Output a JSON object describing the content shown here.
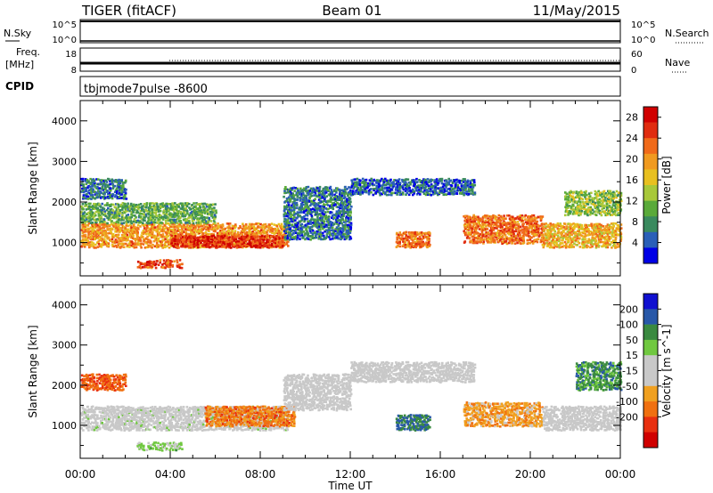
{
  "header": {
    "station": "TIGER (fitACF)",
    "beam": "Beam 01",
    "date": "11/May/2015"
  },
  "top_panels": {
    "nsky_label": "N.Sky",
    "nsearch_label": "N.Search",
    "nsky_ticks": [
      "10^5",
      "10^0"
    ],
    "nsearch_ticks": [
      "10^5",
      "10^0"
    ],
    "freq_label": "Freq.",
    "freq_unit": "[MHz]",
    "freq_ticks": [
      "18",
      "8"
    ],
    "nave_label": "Nave",
    "nave_ticks": [
      "60",
      "0"
    ],
    "cpid_label": "CPID",
    "cpid_value": "tbjmode7pulse -8600"
  },
  "colors": {
    "power_scale": [
      "#0000e6",
      "#2a5fb8",
      "#3a8a5e",
      "#5aaa3a",
      "#a8c83a",
      "#e8c020",
      "#f09a20",
      "#f06a1a",
      "#e02c10",
      "#d00000"
    ],
    "velocity_scale": [
      "#1010d0",
      "#2858a8",
      "#3a8a40",
      "#70c840",
      "#c8c8c8",
      "#c8c8c8",
      "#f0a020",
      "#f07010",
      "#e83010",
      "#d00000"
    ],
    "accent_text": "#000000"
  },
  "chart_data": [
    {
      "type": "heatmap",
      "title": "",
      "ylabel": "Slant Range [km]",
      "xlabel": "",
      "x_ticks": [
        "00:00",
        "04:00",
        "08:00",
        "12:00",
        "16:00",
        "20:00",
        "00:00"
      ],
      "y_ticks": [
        "1000",
        "2000",
        "3000",
        "4000"
      ],
      "ylim": [
        180,
        4500
      ],
      "colorbar": {
        "label": "Power [dB]",
        "ticks": [
          "4",
          "8",
          "12",
          "16",
          "20",
          "24",
          "28"
        ],
        "range": [
          0,
          30
        ]
      },
      "echo_regions": [
        {
          "t": [
            0.0,
            9.2
          ],
          "range": [
            900,
            1500
          ],
          "level": 20
        },
        {
          "t": [
            0.0,
            6.0
          ],
          "range": [
            1500,
            2000
          ],
          "level": 10
        },
        {
          "t": [
            0.0,
            2.0
          ],
          "range": [
            2100,
            2600
          ],
          "level": 6
        },
        {
          "t": [
            2.5,
            4.5
          ],
          "range": [
            400,
            600
          ],
          "level": 24
        },
        {
          "t": [
            4.0,
            9.0
          ],
          "range": [
            900,
            1200
          ],
          "level": 26
        },
        {
          "t": [
            9.0,
            12.0
          ],
          "range": [
            1100,
            2400
          ],
          "level": 6
        },
        {
          "t": [
            12.0,
            17.5
          ],
          "range": [
            2200,
            2600
          ],
          "level": 5
        },
        {
          "t": [
            14.0,
            15.5
          ],
          "range": [
            900,
            1300
          ],
          "level": 22
        },
        {
          "t": [
            17.0,
            20.5
          ],
          "range": [
            1000,
            1700
          ],
          "level": 22
        },
        {
          "t": [
            20.5,
            24.0
          ],
          "range": [
            900,
            1500
          ],
          "level": 18
        },
        {
          "t": [
            21.5,
            24.0
          ],
          "range": [
            1700,
            2300
          ],
          "level": 12
        }
      ]
    },
    {
      "type": "heatmap",
      "title": "",
      "ylabel": "Slant Range [km]",
      "xlabel": "Time UT",
      "x_ticks": [
        "00:00",
        "04:00",
        "08:00",
        "12:00",
        "16:00",
        "20:00",
        "00:00"
      ],
      "y_ticks": [
        "1000",
        "2000",
        "3000",
        "4000"
      ],
      "ylim": [
        180,
        4500
      ],
      "colorbar": {
        "label": "Velocity [m s^-1]",
        "ticks": [
          "200",
          "100",
          "50",
          "15",
          "-15",
          "-50",
          "-100",
          "-200"
        ],
        "range": [
          -250,
          250
        ]
      },
      "echo_regions": [
        {
          "t": [
            0.0,
            9.2
          ],
          "range": [
            900,
            1500
          ],
          "level": 10
        },
        {
          "t": [
            0.0,
            2.0
          ],
          "range": [
            1900,
            2300
          ],
          "level": -150
        },
        {
          "t": [
            2.5,
            4.5
          ],
          "range": [
            400,
            600
          ],
          "level": 60
        },
        {
          "t": [
            5.5,
            9.5
          ],
          "range": [
            1000,
            1500
          ],
          "level": -120
        },
        {
          "t": [
            9.0,
            12.0
          ],
          "range": [
            1400,
            2300
          ],
          "level": 0
        },
        {
          "t": [
            12.0,
            17.5
          ],
          "range": [
            2100,
            2600
          ],
          "level": 0
        },
        {
          "t": [
            14.0,
            15.5
          ],
          "range": [
            900,
            1300
          ],
          "level": 150
        },
        {
          "t": [
            17.0,
            20.5
          ],
          "range": [
            1000,
            1600
          ],
          "level": -80
        },
        {
          "t": [
            20.5,
            24.0
          ],
          "range": [
            900,
            1500
          ],
          "level": 5
        },
        {
          "t": [
            22.0,
            24.0
          ],
          "range": [
            1900,
            2600
          ],
          "level": 120
        }
      ]
    }
  ]
}
